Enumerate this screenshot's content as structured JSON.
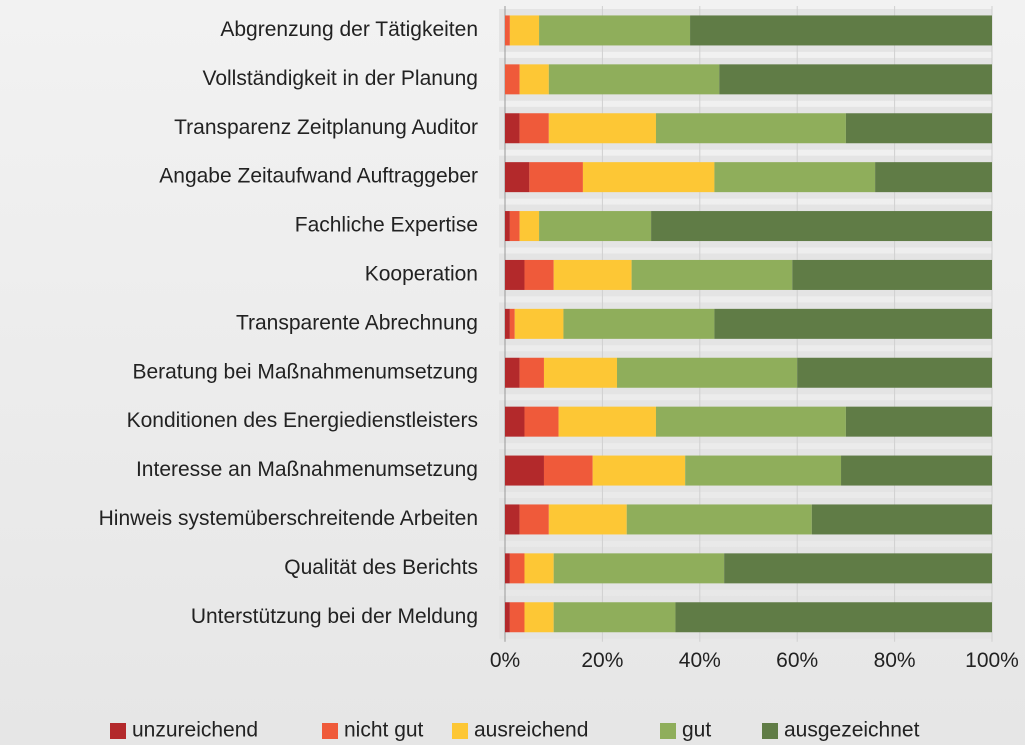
{
  "chart_data": {
    "type": "stacked_bar_horizontal",
    "categories": [
      "Abgrenzung der Tätigkeiten",
      "Vollständigkeit in der Planung",
      "Transparenz Zeitplanung Auditor",
      "Angabe Zeitaufwand Auftraggeber",
      "Fachliche Expertise",
      "Kooperation",
      "Transparente Abrechnung",
      "Beratung bei Maßnahmenumsetzung",
      "Konditionen des Energiedienstleisters",
      "Interesse an Maßnahmenumsetzung",
      "Hinweis systemüberschreitende Arbeiten",
      "Qualität des Berichts",
      "Unterstützung bei der Meldung"
    ],
    "series": [
      {
        "name": "unzureichend",
        "color": "#b3292b",
        "values": [
          0,
          0,
          3,
          5,
          1,
          4,
          1,
          3,
          4,
          8,
          3,
          1,
          1
        ]
      },
      {
        "name": "nicht gut",
        "color": "#ef5a3a",
        "values": [
          1,
          3,
          6,
          11,
          2,
          6,
          1,
          5,
          7,
          10,
          6,
          3,
          3
        ]
      },
      {
        "name": "ausreichend",
        "color": "#fdc735",
        "values": [
          6,
          6,
          22,
          27,
          4,
          16,
          10,
          15,
          20,
          19,
          16,
          6,
          6
        ]
      },
      {
        "name": "gut",
        "color": "#8fae5b",
        "values": [
          31,
          35,
          39,
          33,
          23,
          33,
          31,
          37,
          39,
          32,
          38,
          35,
          25
        ]
      },
      {
        "name": "ausgezeichnet",
        "color": "#607c46",
        "values": [
          62,
          56,
          30,
          24,
          70,
          41,
          57,
          40,
          30,
          31,
          37,
          55,
          65
        ]
      }
    ],
    "xlim": [
      0,
      100
    ],
    "xticks": [
      {
        "value": 0,
        "label": "0%"
      },
      {
        "value": 20,
        "label": "20%"
      },
      {
        "value": 40,
        "label": "40%"
      },
      {
        "value": 60,
        "label": "60%"
      },
      {
        "value": 80,
        "label": "80%"
      },
      {
        "value": 100,
        "label": "100%"
      }
    ],
    "grid": true,
    "legend": "bottom"
  }
}
